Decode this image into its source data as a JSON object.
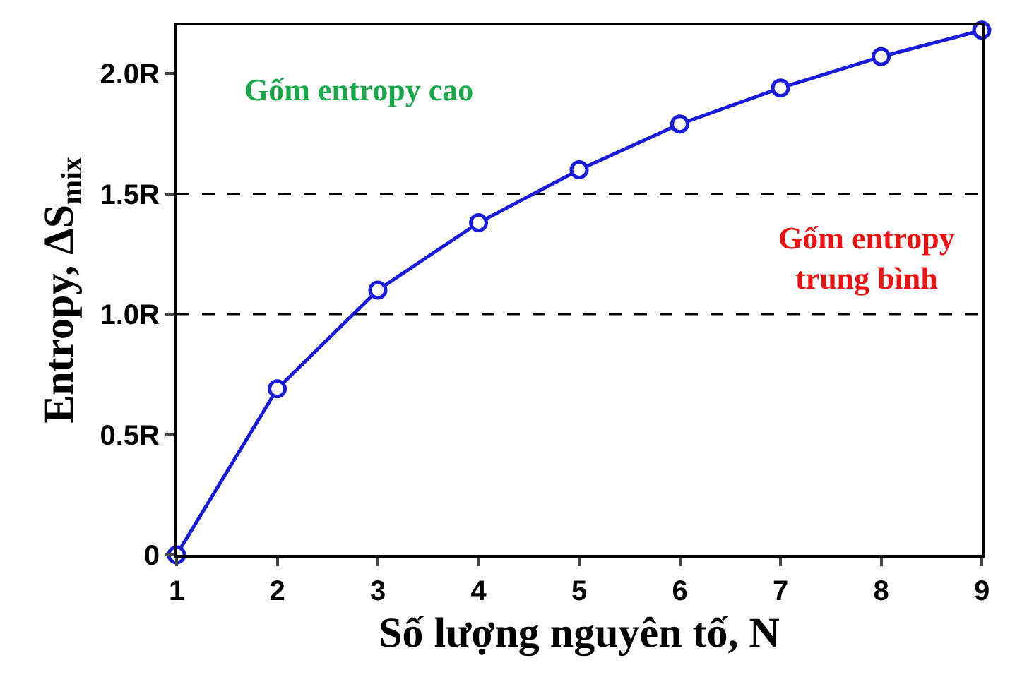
{
  "chart_data": {
    "type": "line",
    "xlabel": "Số lượng nguyên tố, N",
    "ylabel": "Entropy, ΔS$_{mix}$",
    "x": [
      1,
      2,
      3,
      4,
      5,
      6,
      7,
      8,
      9
    ],
    "series": [
      {
        "color": "#1a1adc",
        "values": [
          0,
          0.69,
          1.1,
          1.38,
          1.6,
          1.79,
          1.94,
          2.07,
          2.18
        ]
      }
    ],
    "xlim": [
      1,
      9
    ],
    "xticks": [
      1,
      2,
      3,
      4,
      5,
      6,
      7,
      8,
      9
    ],
    "ylim": [
      0,
      2.2
    ],
    "yticks": [
      0,
      {
        "value": 0.5,
        "label": "0.5R"
      },
      {
        "value": 1.0,
        "label": "1.0R"
      },
      {
        "value": 1.5,
        "label": "1.5R"
      },
      {
        "value": 2.0,
        "label": "2.0R"
      }
    ],
    "ref_lines": [
      {
        "axis": "y",
        "value": 1.0,
        "color": "#000000",
        "line_style": "dashed"
      },
      {
        "axis": "y",
        "value": 1.5,
        "color": "#000000",
        "line_style": "dashed"
      }
    ],
    "annotations": [
      "Gốm entropy cao",
      "Gốm entropy\ntrung bình"
    ],
    "marker": "circle",
    "line_style": "solid",
    "grid": false,
    "legend": false
  }
}
